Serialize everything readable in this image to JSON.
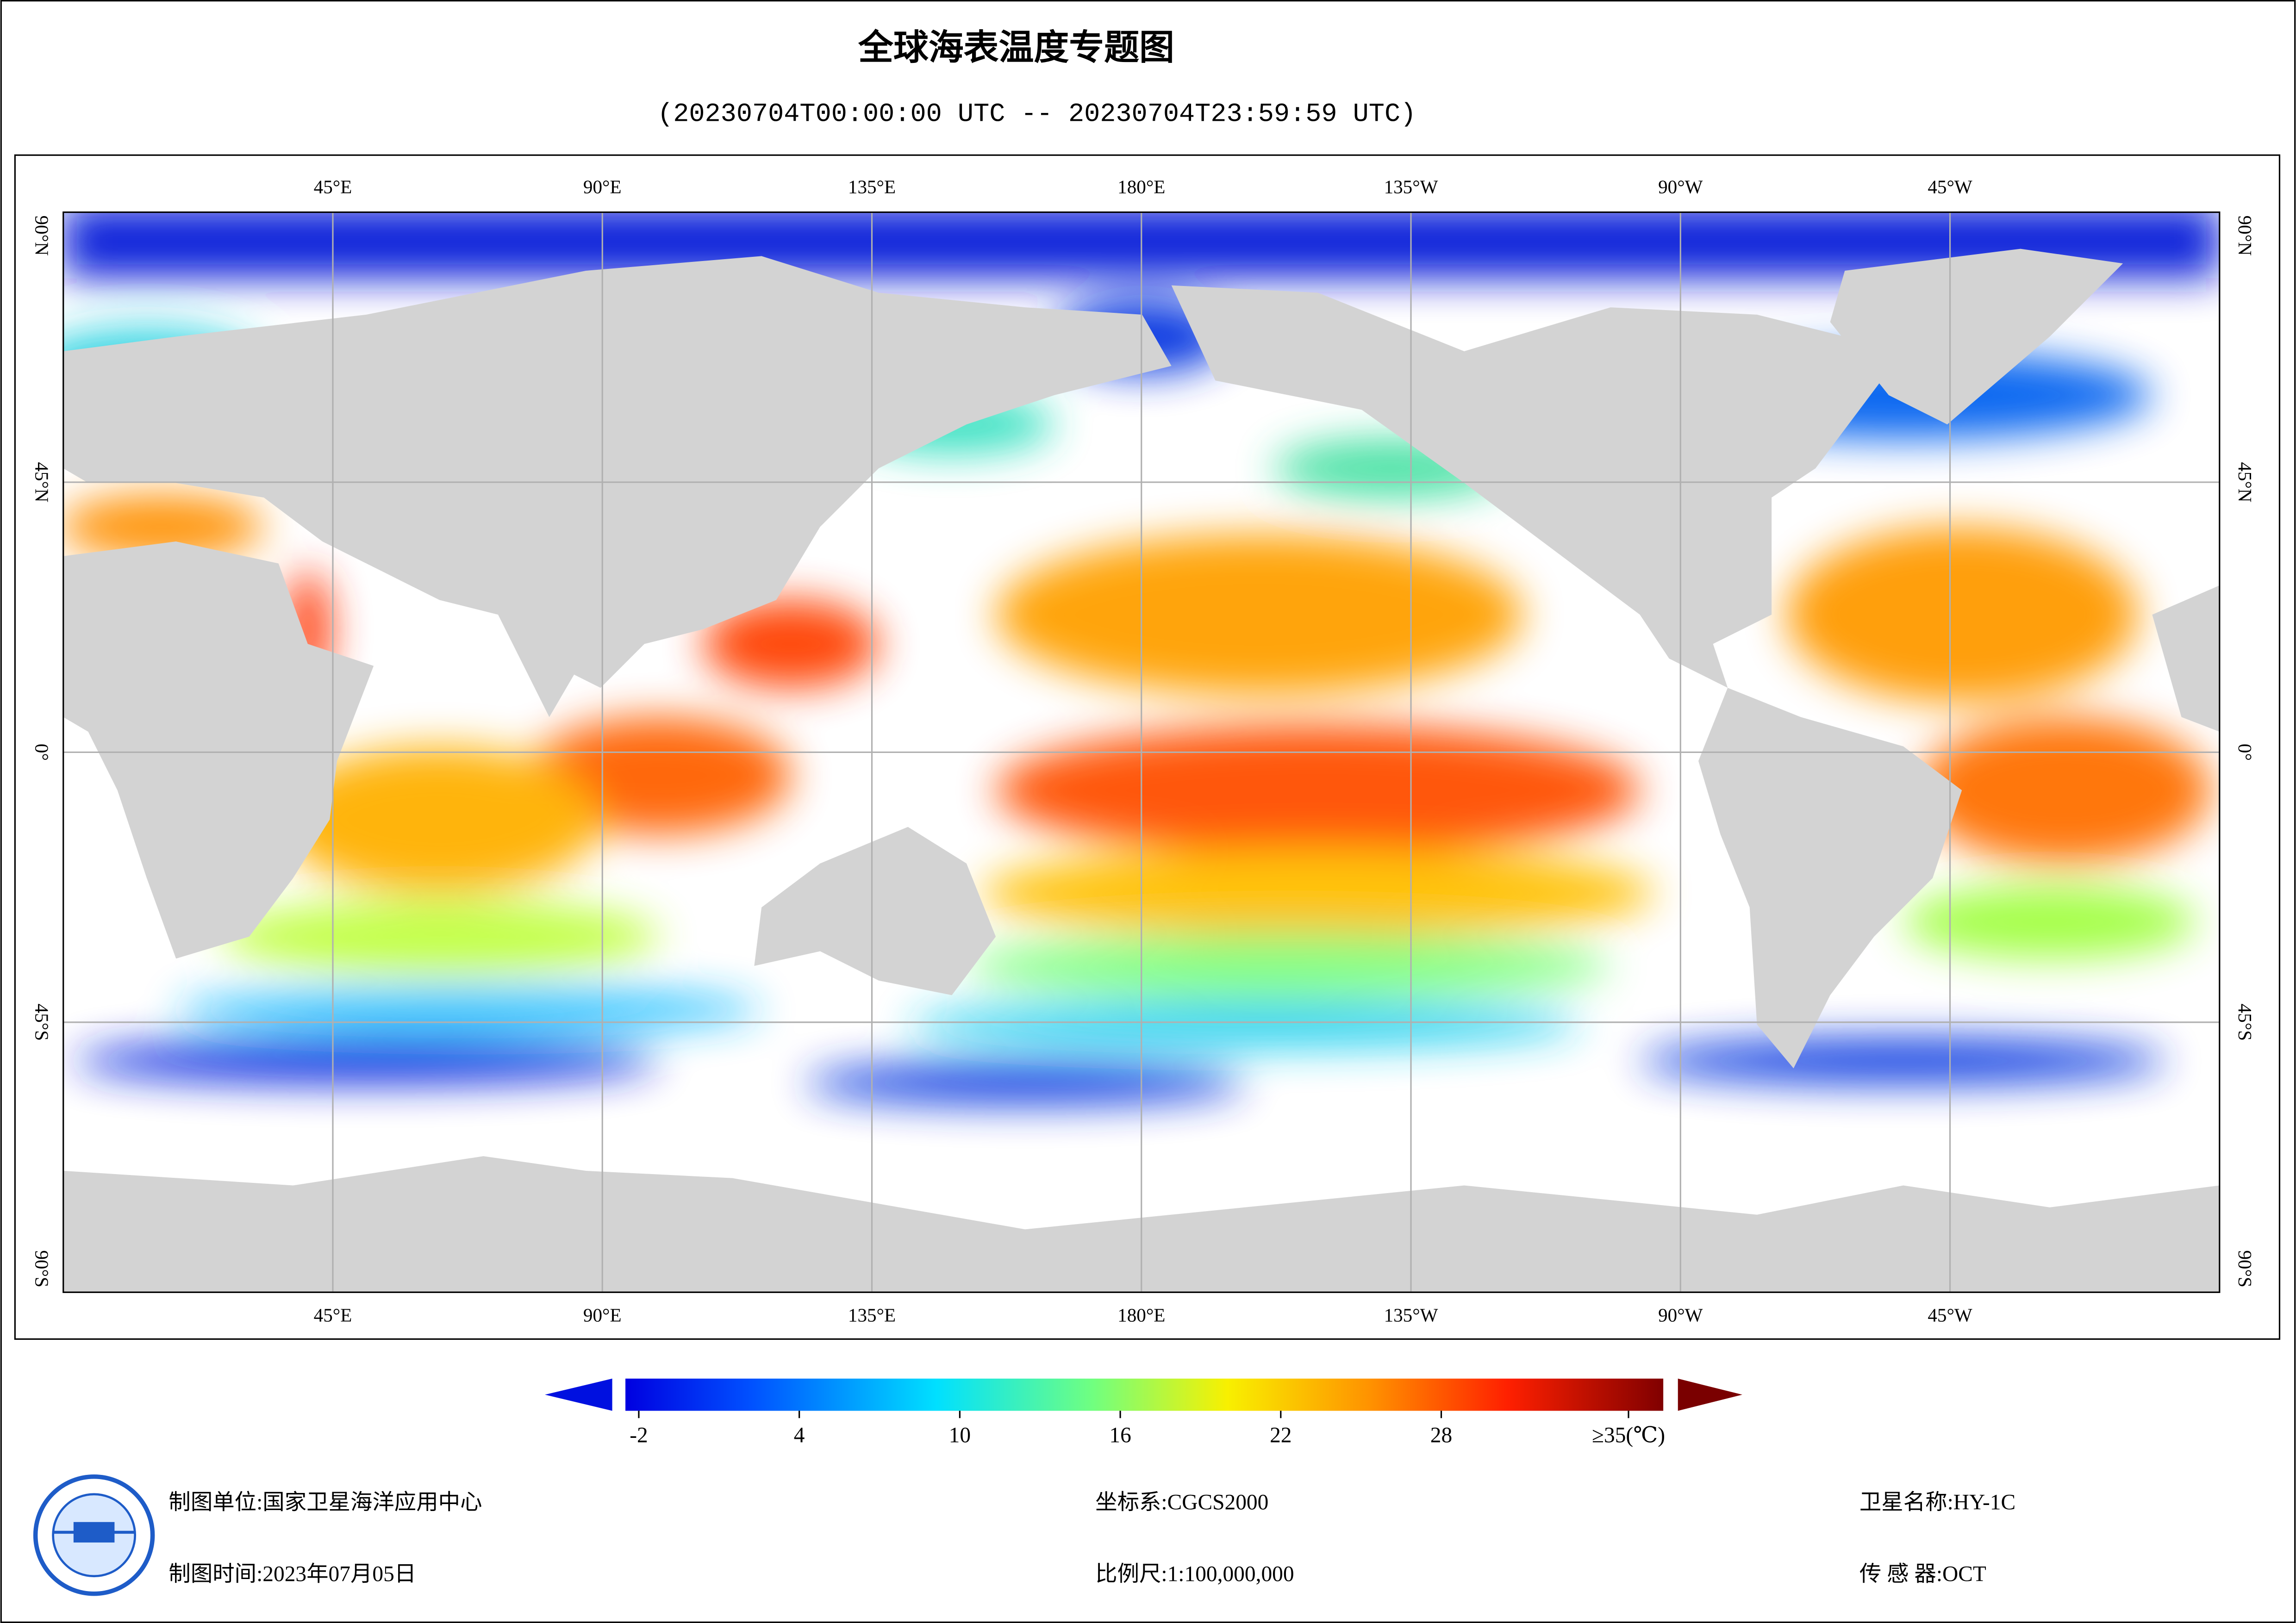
{
  "map": {
    "title": "全球海表温度专题图",
    "subtitle": "(20230704T00:00:00 UTC -- 20230704T23:59:59 UTC)",
    "xlim": [
      0,
      360
    ],
    "ylim": [
      -90,
      90
    ],
    "lon_ticks": [
      {
        "value": 45,
        "label": "45°E"
      },
      {
        "value": 90,
        "label": "90°E"
      },
      {
        "value": 135,
        "label": "135°E"
      },
      {
        "value": 180,
        "label": "180°E"
      },
      {
        "value": 225,
        "label": "135°W"
      },
      {
        "value": 270,
        "label": "90°W"
      },
      {
        "value": 315,
        "label": "45°W"
      }
    ],
    "lat_ticks": [
      {
        "value": 90,
        "label": "90°N"
      },
      {
        "value": 45,
        "label": "45°N"
      },
      {
        "value": 0,
        "label": "0°"
      },
      {
        "value": -45,
        "label": "45°S"
      },
      {
        "value": -90,
        "label": "90°S"
      }
    ],
    "colorbar": {
      "lim": [
        -2.5,
        36.3
      ],
      "ticks": [
        -2,
        4,
        10,
        16,
        22,
        28,
        {
          "value": 35,
          "label": "≥35(℃)"
        }
      ]
    },
    "footer": {
      "unit": "制图单位:国家卫星海洋应用中心",
      "date": "制图时间:2023年07月05日",
      "crs": "坐标系:CGCS2000",
      "scale": "比例尺:1:100,000,000",
      "satellite": "卫星名称:HY-1C",
      "sensor": "传 感 器:OCT"
    }
  }
}
